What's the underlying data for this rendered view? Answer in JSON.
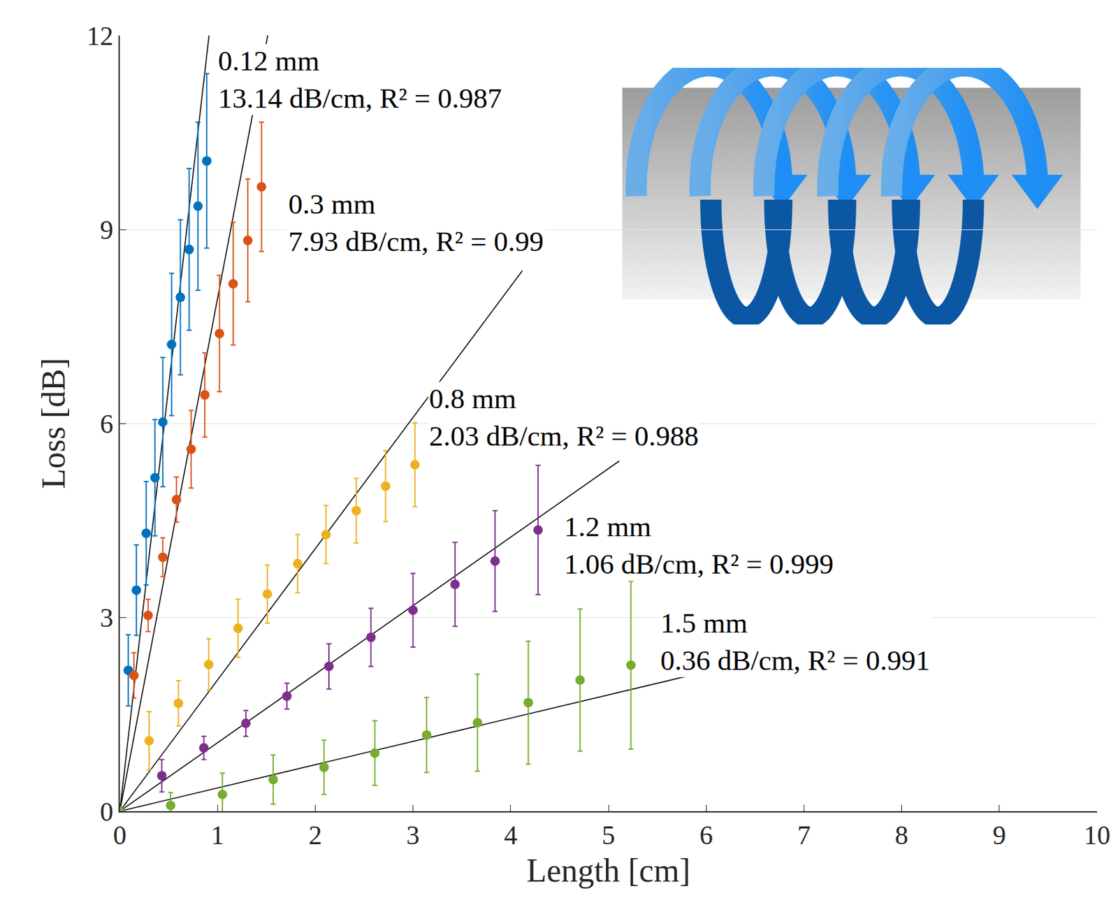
{
  "chart_data": {
    "type": "scatter",
    "x_label": "Length [cm]",
    "y_label": "Loss [dB]",
    "xlim": [
      0,
      10
    ],
    "xticks": [
      0,
      1,
      2,
      3,
      4,
      5,
      6,
      7,
      8,
      9,
      10
    ],
    "ylim": [
      0,
      12
    ],
    "yticks": [
      0,
      3,
      6,
      9,
      12
    ],
    "grid": "y",
    "marker": "circle",
    "series": [
      {
        "name": "0.12 mm",
        "color": "#0072bd",
        "x": [
          0,
          0.087,
          0.17,
          0.27,
          0.36,
          0.44,
          0.53,
          0.62,
          0.71,
          0.8,
          0.89
        ],
        "values": [
          0,
          2.18,
          3.42,
          4.3,
          5.16,
          6.02,
          7.22,
          7.95,
          8.69,
          9.36,
          10.06
        ],
        "error": [
          0,
          0.55,
          0.7,
          0.8,
          0.9,
          1.0,
          1.1,
          1.2,
          1.25,
          1.3,
          1.35
        ],
        "fit": {
          "slope": 13.14,
          "x_end": 0.92,
          "label": "13.14 dB/cm, R² = 0.987"
        }
      },
      {
        "name": "0.3 mm",
        "color": "#d95319",
        "x": [
          0,
          0.145,
          0.29,
          0.44,
          0.58,
          0.73,
          0.87,
          1.02,
          1.16,
          1.31,
          1.45
        ],
        "values": [
          0,
          2.1,
          3.03,
          3.93,
          4.82,
          5.6,
          6.44,
          7.39,
          8.16,
          8.83,
          9.66
        ],
        "error": [
          0,
          0.35,
          0.25,
          0.3,
          0.35,
          0.6,
          0.65,
          0.9,
          0.95,
          0.95,
          1.0
        ],
        "fit": {
          "slope": 7.93,
          "x_end": 1.52,
          "label": "7.93 dB/cm, R² = 0.99"
        }
      },
      {
        "name": "0.8 mm",
        "color": "#edb120",
        "x": [
          0,
          0.3,
          0.6,
          0.91,
          1.21,
          1.51,
          1.82,
          2.11,
          2.42,
          2.72,
          3.02
        ],
        "values": [
          0,
          1.09,
          1.67,
          2.27,
          2.83,
          3.36,
          3.83,
          4.28,
          4.65,
          5.03,
          5.36
        ],
        "error": [
          0,
          0.45,
          0.35,
          0.4,
          0.45,
          0.45,
          0.45,
          0.45,
          0.5,
          0.55,
          0.65
        ],
        "fit": {
          "slope": 2.03,
          "x_end": 4.12,
          "label": "2.03 dB/cm, R² = 0.988"
        }
      },
      {
        "name": "1.2 mm",
        "color": "#7e2f8e",
        "x": [
          0,
          0.43,
          0.86,
          1.29,
          1.71,
          2.14,
          2.57,
          3.0,
          3.43,
          3.84,
          4.28
        ],
        "values": [
          0,
          0.55,
          0.98,
          1.36,
          1.78,
          2.24,
          2.69,
          3.11,
          3.51,
          3.87,
          4.35
        ],
        "error": [
          0,
          0.25,
          0.18,
          0.2,
          0.2,
          0.35,
          0.45,
          0.57,
          0.65,
          0.78,
          1.0
        ],
        "fit": {
          "slope": 1.06,
          "x_end": 5.11,
          "label": "1.06 dB/cm, R² = 0.999"
        }
      },
      {
        "name": "1.5 mm",
        "color": "#77ac30",
        "x": [
          0,
          0.52,
          1.05,
          1.57,
          2.09,
          2.61,
          3.14,
          3.66,
          4.18,
          4.71,
          5.23
        ],
        "values": [
          0,
          0.09,
          0.26,
          0.49,
          0.68,
          0.9,
          1.18,
          1.37,
          1.68,
          2.03,
          2.26
        ],
        "error": [
          0,
          0.2,
          0.33,
          0.38,
          0.42,
          0.5,
          0.58,
          0.75,
          0.95,
          1.1,
          1.3
        ],
        "fit": {
          "slope": 0.36,
          "x_end": 6.11,
          "label": "0.36 dB/cm, R² = 0.991"
        }
      }
    ]
  }
}
